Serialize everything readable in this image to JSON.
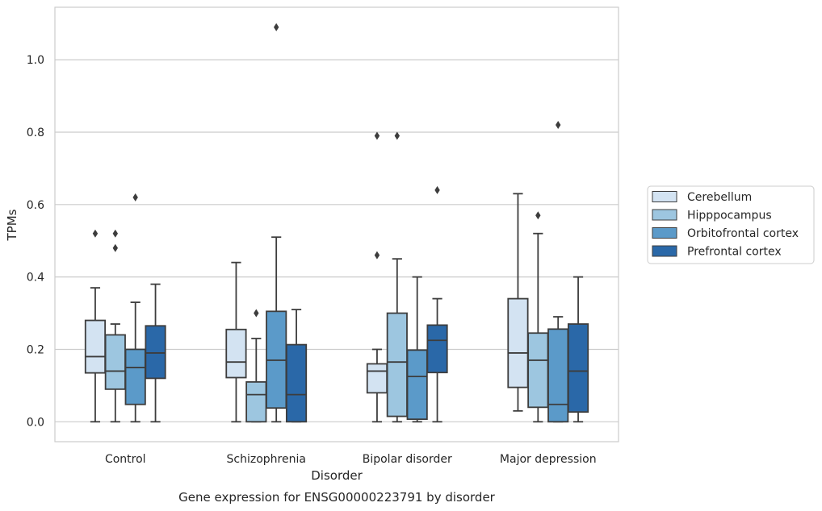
{
  "caption": "Gene expression for ENSG00000223791 by disorder",
  "chart_data": {
    "type": "box",
    "xlabel": "Disorder",
    "ylabel": "TPMs",
    "ylim": [
      -0.055,
      1.145
    ],
    "yticks": [
      "0.0",
      "0.2",
      "0.4",
      "0.6",
      "0.8",
      "1.0"
    ],
    "categories": [
      "Control",
      "Schizophrenia",
      "Bipolar disorder",
      "Major depression"
    ],
    "grid": true,
    "legend_position": "right",
    "series": [
      {
        "name": "Cerebellum",
        "color": "#d3e3f2",
        "boxes": [
          {
            "whislo": 0.0,
            "q1": 0.135,
            "med": 0.18,
            "q3": 0.28,
            "whishi": 0.37,
            "fliers": [
              0.52
            ]
          },
          {
            "whislo": 0.0,
            "q1": 0.122,
            "med": 0.165,
            "q3": 0.255,
            "whishi": 0.44,
            "fliers": []
          },
          {
            "whislo": 0.0,
            "q1": 0.08,
            "med": 0.14,
            "q3": 0.16,
            "whishi": 0.2,
            "fliers": [
              0.46,
              0.79
            ]
          },
          {
            "whislo": 0.03,
            "q1": 0.095,
            "med": 0.19,
            "q3": 0.34,
            "whishi": 0.63,
            "fliers": []
          }
        ]
      },
      {
        "name": "Hipppocampus",
        "color": "#9dc6e0",
        "boxes": [
          {
            "whislo": 0.0,
            "q1": 0.09,
            "med": 0.14,
            "q3": 0.24,
            "whishi": 0.27,
            "fliers": [
              0.48,
              0.52
            ]
          },
          {
            "whislo": 0.0,
            "q1": 0.0,
            "med": 0.075,
            "q3": 0.11,
            "whishi": 0.23,
            "fliers": [
              0.3
            ]
          },
          {
            "whislo": 0.0,
            "q1": 0.015,
            "med": 0.165,
            "q3": 0.3,
            "whishi": 0.45,
            "fliers": [
              0.79
            ]
          },
          {
            "whislo": 0.0,
            "q1": 0.04,
            "med": 0.17,
            "q3": 0.245,
            "whishi": 0.52,
            "fliers": [
              0.57
            ]
          }
        ]
      },
      {
        "name": "Orbitofrontal cortex",
        "color": "#5b9ac9",
        "boxes": [
          {
            "whislo": 0.0,
            "q1": 0.048,
            "med": 0.15,
            "q3": 0.2,
            "whishi": 0.33,
            "fliers": [
              0.62
            ]
          },
          {
            "whislo": 0.0,
            "q1": 0.038,
            "med": 0.17,
            "q3": 0.305,
            "whishi": 0.51,
            "fliers": [
              1.09
            ]
          },
          {
            "whislo": 0.0,
            "q1": 0.007,
            "med": 0.125,
            "q3": 0.198,
            "whishi": 0.4,
            "fliers": []
          },
          {
            "whislo": 0.0,
            "q1": 0.0,
            "med": 0.048,
            "q3": 0.256,
            "whishi": 0.29,
            "fliers": [
              0.82
            ]
          }
        ]
      },
      {
        "name": "Prefrontal cortex",
        "color": "#2a68a8",
        "boxes": [
          {
            "whislo": 0.0,
            "q1": 0.12,
            "med": 0.19,
            "q3": 0.265,
            "whishi": 0.38,
            "fliers": []
          },
          {
            "whislo": 0.0,
            "q1": 0.0,
            "med": 0.075,
            "q3": 0.213,
            "whishi": 0.31,
            "fliers": []
          },
          {
            "whislo": 0.0,
            "q1": 0.136,
            "med": 0.225,
            "q3": 0.267,
            "whishi": 0.34,
            "fliers": [
              0.64
            ]
          },
          {
            "whislo": 0.0,
            "q1": 0.027,
            "med": 0.14,
            "q3": 0.27,
            "whishi": 0.4,
            "fliers": []
          }
        ]
      }
    ]
  }
}
